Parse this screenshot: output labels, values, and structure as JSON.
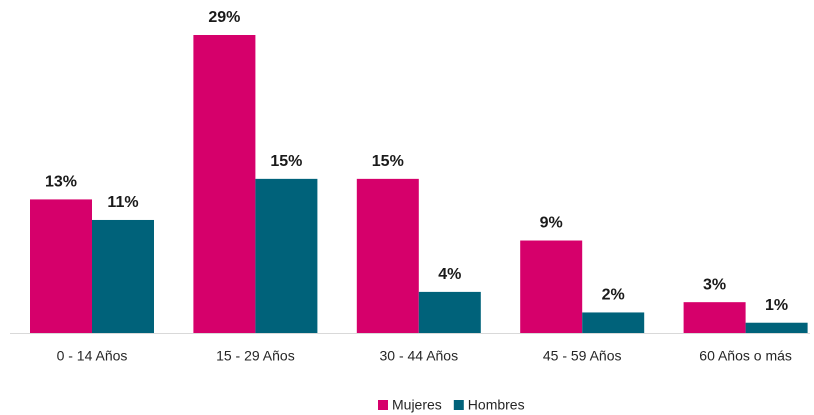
{
  "chart_data": {
    "type": "bar",
    "categories": [
      "0 - 14 Años",
      "15 - 29 Años",
      "30 - 44 Años",
      "45 - 59 Años",
      "60 Años o más"
    ],
    "series": [
      {
        "name": "Mujeres",
        "color": "#d6006b",
        "values": [
          13,
          29,
          15,
          9,
          3
        ],
        "value_labels": [
          "13%",
          "29%",
          "15%",
          "9%",
          "3%"
        ]
      },
      {
        "name": "Hombres",
        "color": "#00627a",
        "values": [
          11,
          15,
          4,
          2,
          1
        ],
        "value_labels": [
          "11%",
          "15%",
          "4%",
          "2%",
          "1%"
        ]
      }
    ],
    "legend": "bottom"
  }
}
